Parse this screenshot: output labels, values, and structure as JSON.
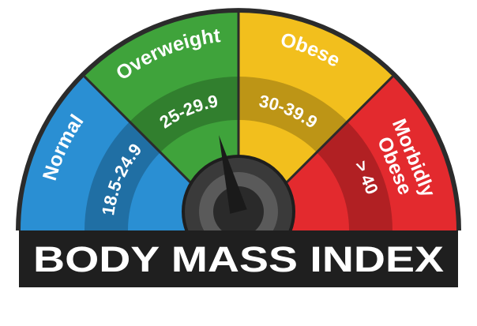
{
  "title": "BODY MASS INDEX",
  "colors": {
    "normal": "#2A8FD3",
    "overweight": "#3FA33B",
    "obese": "#F2BF1D",
    "morbidly_obese": "#E32A2E",
    "banner": "#1F1F1F",
    "outline": "#2B2B2B"
  },
  "segments": [
    {
      "name": "Normal",
      "range": "18.5-24.9",
      "color": "#2A8FD3"
    },
    {
      "name": "Overweight",
      "range": "25-29.9",
      "color": "#3FA33B"
    },
    {
      "name": "Obese",
      "range": "30-39.9",
      "color": "#F2BF1D"
    },
    {
      "name_lines": [
        "Morbidly",
        "Obese"
      ],
      "range": "> 40",
      "color": "#E32A2E"
    }
  ],
  "needle": {
    "category": "Overweight",
    "position_fraction": 0.42
  }
}
